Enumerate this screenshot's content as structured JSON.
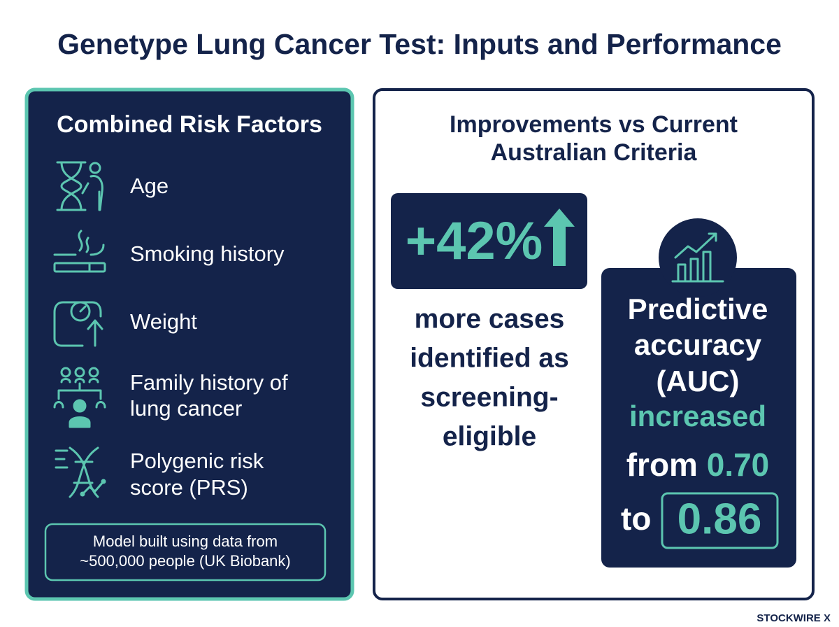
{
  "title": "Genetype Lung Cancer Test: Inputs and Performance",
  "left_panel": {
    "heading": "Combined Risk Factors",
    "factors": [
      {
        "lines": [
          "Age"
        ]
      },
      {
        "lines": [
          "Smoking history"
        ]
      },
      {
        "lines": [
          "Weight"
        ]
      },
      {
        "lines": [
          "Family history of",
          "lung cancer"
        ]
      },
      {
        "lines": [
          "Polygenic risk",
          "score (PRS)"
        ]
      }
    ],
    "note_lines": [
      "Model built using data from",
      "~500,000 people (UK Biobank)"
    ]
  },
  "right_panel": {
    "heading_lines": [
      "Improvements vs Current",
      "Australian Criteria"
    ],
    "stat": "+42%",
    "stat_caption_lines": [
      "more cases",
      "identified as",
      "screening-",
      "eligible"
    ],
    "accuracy": {
      "lines": [
        "Predictive",
        "accuracy",
        "(AUC)"
      ],
      "increased": "increased",
      "from_word": "from",
      "from_value": "0.70",
      "to_word": "to",
      "to_value": "0.86"
    }
  },
  "brand": "STOCKWIRE X"
}
